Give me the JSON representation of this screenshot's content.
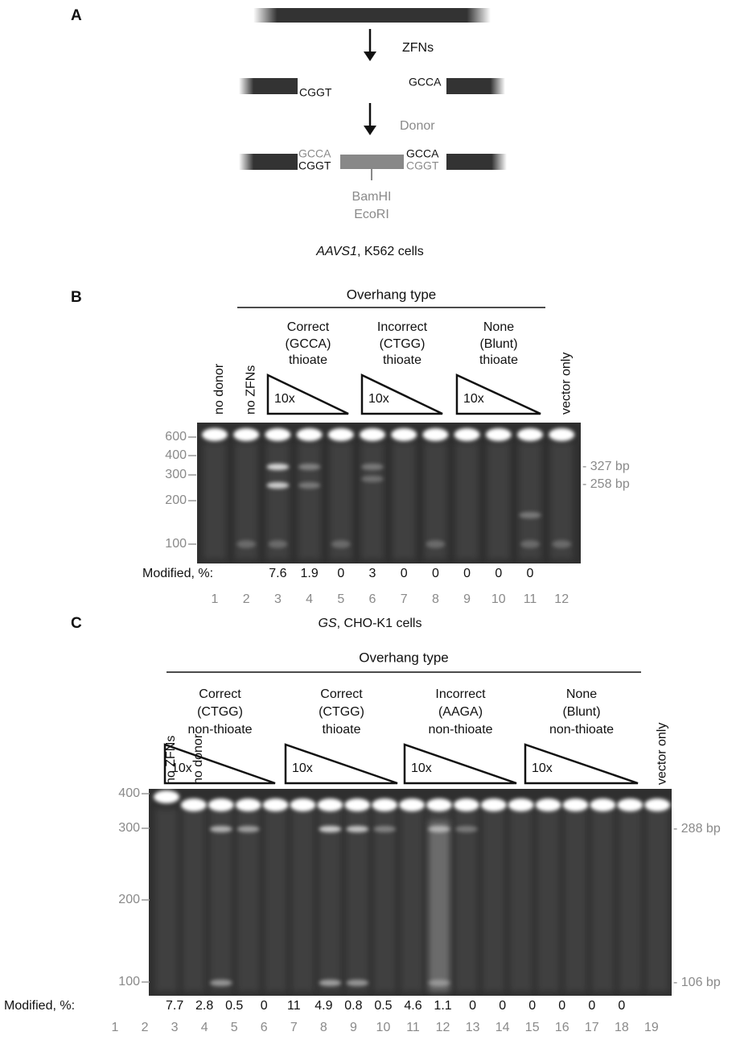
{
  "panel_a": {
    "label": "A",
    "step1": "ZFNs",
    "left_end": "CGGT",
    "right_end": "GCCA",
    "step2": "Donor",
    "left_top": "GCCA",
    "left_bottom": "CGGT",
    "right_top": "GCCA",
    "right_bottom": "CGGT",
    "sites": [
      "BamHI",
      "EcoRI"
    ]
  },
  "panel_b": {
    "label": "B",
    "title_italic": "AAVS1",
    "title_rest": ", K562 cells",
    "header": "Overhang type",
    "groups": [
      {
        "lines": [
          "Correct",
          "(GCCA)",
          "thioate"
        ],
        "gradient": "10x"
      },
      {
        "lines": [
          "Incorrect",
          "(CTGG)",
          "thioate"
        ],
        "gradient": "10x"
      },
      {
        "lines": [
          "None",
          "(Blunt)",
          "thioate"
        ],
        "gradient": "10x"
      }
    ],
    "control_labels": [
      "no donor",
      "no ZFNs",
      "vector only"
    ],
    "ladder": [
      600,
      400,
      300,
      200,
      100
    ],
    "markers": [
      "- 327 bp",
      "- 258 bp"
    ],
    "modified_label": "Modified, %:",
    "modified": [
      7.6,
      1.9,
      0,
      3,
      0,
      0,
      0,
      0,
      0
    ],
    "lane_numbers": [
      1,
      2,
      3,
      4,
      5,
      6,
      7,
      8,
      9,
      10,
      11,
      12
    ]
  },
  "panel_c": {
    "label": "C",
    "title_italic": "GS",
    "title_rest": ", CHO-K1 cells",
    "header": "Overhang type",
    "groups": [
      {
        "lines": [
          "Correct",
          "(CTGG)",
          "non-thioate"
        ],
        "gradient": "10x"
      },
      {
        "lines": [
          "Correct",
          "(CTGG)",
          "thioate"
        ],
        "gradient": "10x"
      },
      {
        "lines": [
          "Incorrect",
          "(AAGA)",
          "non-thioate"
        ],
        "gradient": "10x"
      },
      {
        "lines": [
          "None",
          "(Blunt)",
          "non-thioate"
        ],
        "gradient": "10x"
      }
    ],
    "control_labels": [
      "no ZFNs",
      "no donor",
      "vector only"
    ],
    "ladder": [
      400,
      300,
      200,
      100
    ],
    "markers": [
      "- 288 bp",
      "- 106 bp"
    ],
    "modified_label": "Modified, %:",
    "modified": [
      7.7,
      2.8,
      0.5,
      0,
      11,
      4.9,
      0.8,
      0.5,
      4.6,
      1.1,
      0,
      0,
      0,
      0,
      0,
      0
    ],
    "lane_numbers": [
      1,
      2,
      3,
      4,
      5,
      6,
      7,
      8,
      9,
      10,
      11,
      12,
      13,
      14,
      15,
      16,
      17,
      18,
      19
    ]
  }
}
